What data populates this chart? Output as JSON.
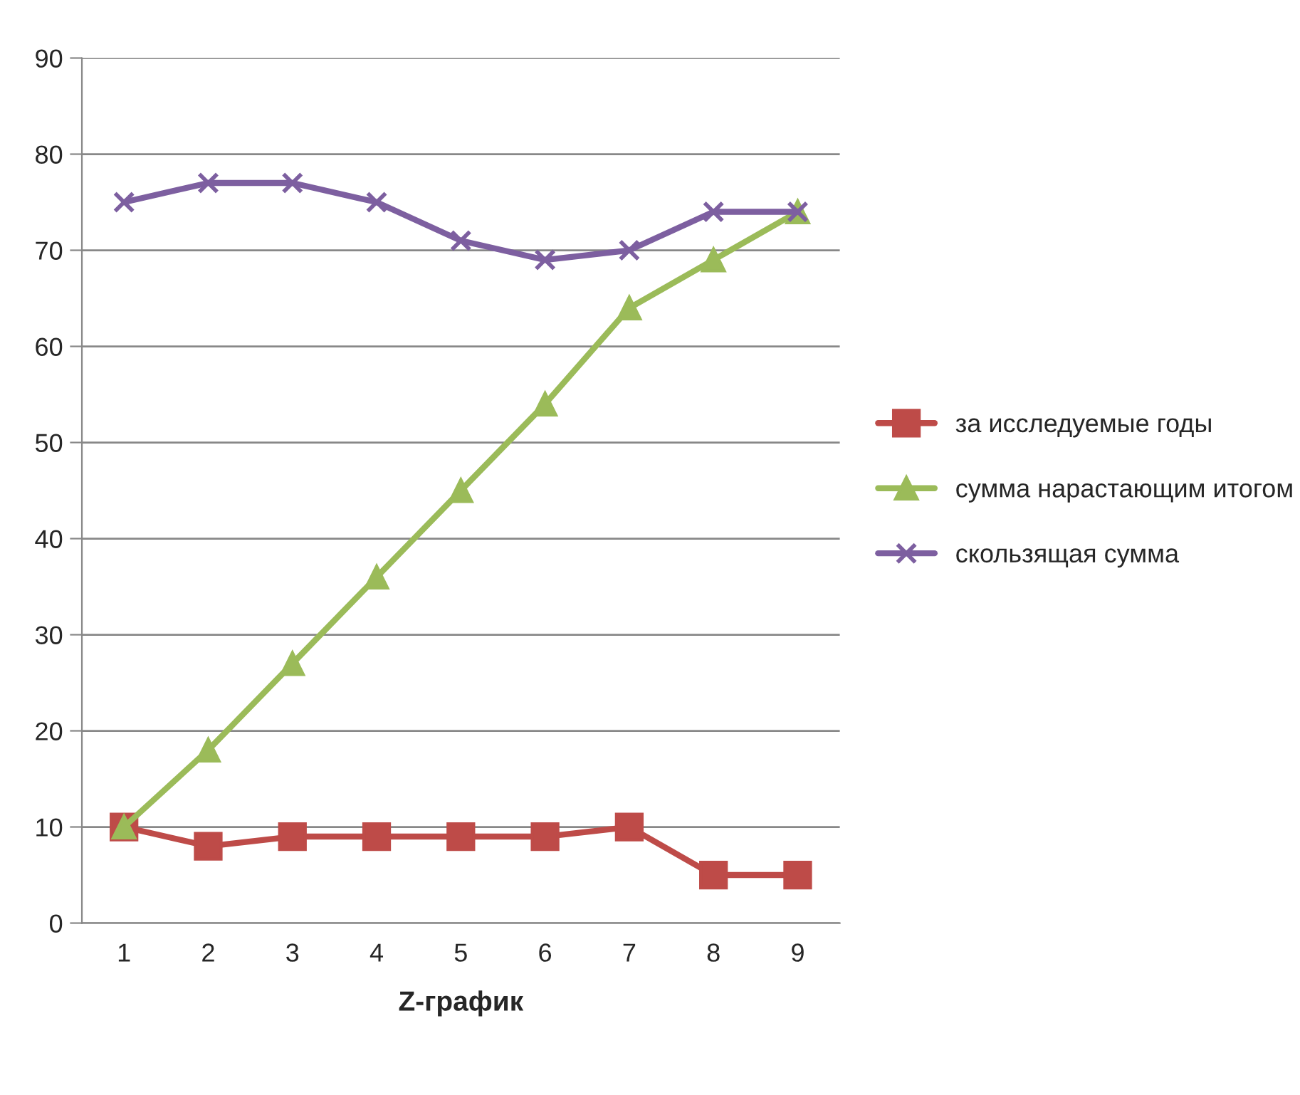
{
  "chart_data": {
    "type": "line",
    "xlabel": "Z-график",
    "categories": [
      "1",
      "2",
      "3",
      "4",
      "5",
      "6",
      "7",
      "8",
      "9"
    ],
    "series": [
      {
        "name": "за исследуемые годы",
        "color": "#be4b48",
        "marker": "square",
        "values": [
          10,
          8,
          9,
          9,
          9,
          9,
          10,
          5,
          5
        ]
      },
      {
        "name": "сумма нарастающим итогом",
        "color": "#9bbb59",
        "marker": "triangle",
        "values": [
          10,
          18,
          27,
          36,
          45,
          54,
          64,
          69,
          74
        ]
      },
      {
        "name": "скользящая сумма",
        "color": "#7d5fa0",
        "marker": "cross",
        "values": [
          75,
          77,
          77,
          75,
          71,
          69,
          70,
          74,
          74
        ]
      }
    ],
    "ylim": [
      0,
      90
    ],
    "yticks": [
      0,
      10,
      20,
      30,
      40,
      50,
      60,
      70,
      80,
      90
    ],
    "grid": "y",
    "legend": "right"
  }
}
